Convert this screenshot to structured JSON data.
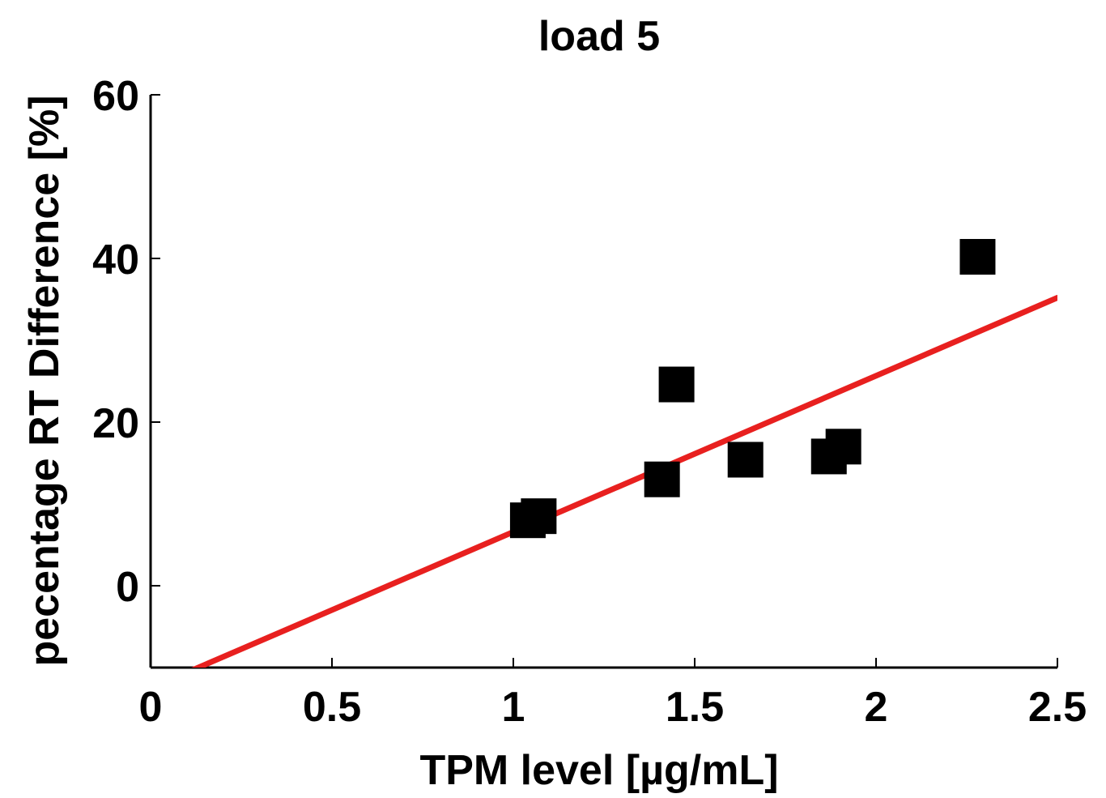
{
  "chart_data": {
    "type": "scatter",
    "title": "load 5",
    "xlabel": "TPM level [µg/mL]",
    "ylabel": "pecentage RT Difference [%]",
    "xlim": [
      0,
      2.5
    ],
    "ylim": [
      -10,
      60
    ],
    "xticks": [
      0,
      0.5,
      1,
      1.5,
      2,
      2.5
    ],
    "xtick_labels": [
      "0",
      "0.5",
      "1",
      "1.5",
      "2",
      "2.5"
    ],
    "yticks": [
      0,
      20,
      40,
      60
    ],
    "ytick_labels": [
      "0",
      "20",
      "40",
      "60"
    ],
    "grid": false,
    "legend": "none",
    "colors": {
      "points": "#000000",
      "fit_line": "#e8201f",
      "axes": "#000000"
    },
    "series": [
      {
        "type": "scatter",
        "marker": "square",
        "points": [
          {
            "x": 1.04,
            "y": 8.0
          },
          {
            "x": 1.07,
            "y": 8.5
          },
          {
            "x": 1.41,
            "y": 13.0
          },
          {
            "x": 1.45,
            "y": 24.6
          },
          {
            "x": 1.64,
            "y": 15.4
          },
          {
            "x": 1.87,
            "y": 15.8
          },
          {
            "x": 1.91,
            "y": 17.0
          },
          {
            "x": 2.28,
            "y": 40.2
          }
        ]
      },
      {
        "type": "line",
        "points": [
          {
            "x": 0.1,
            "y": -10.6
          },
          {
            "x": 2.5,
            "y": 35.2
          }
        ]
      }
    ]
  }
}
